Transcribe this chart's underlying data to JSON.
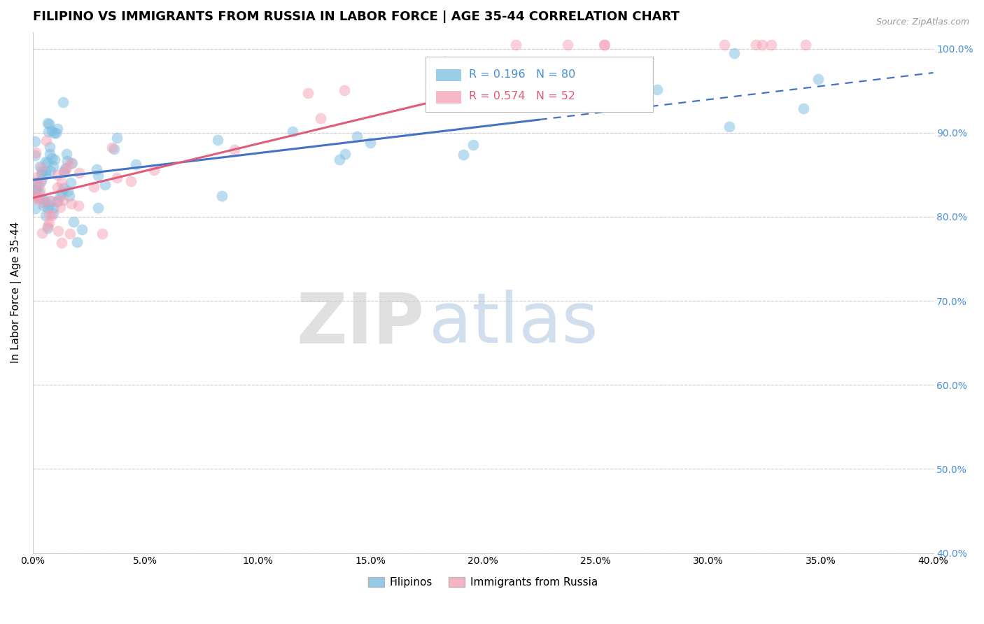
{
  "title": "FILIPINO VS IMMIGRANTS FROM RUSSIA IN LABOR FORCE | AGE 35-44 CORRELATION CHART",
  "source": "Source: ZipAtlas.com",
  "ylabel": "In Labor Force | Age 35-44",
  "xlim": [
    0.0,
    0.4
  ],
  "ylim": [
    0.4,
    1.02
  ],
  "xtick_vals": [
    0.0,
    0.05,
    0.1,
    0.15,
    0.2,
    0.25,
    0.3,
    0.35,
    0.4
  ],
  "xtick_labs": [
    "0.0%",
    "5.0%",
    "10.0%",
    "15.0%",
    "20.0%",
    "25.0%",
    "30.0%",
    "35.0%",
    "40.0%"
  ],
  "ytick_vals": [
    0.4,
    0.5,
    0.6,
    0.7,
    0.8,
    0.9,
    1.0
  ],
  "ytick_labs": [
    "40.0%",
    "50.0%",
    "60.0%",
    "70.0%",
    "80.0%",
    "90.0%",
    "100.0%"
  ],
  "blue_R": 0.196,
  "blue_N": 80,
  "pink_R": 0.574,
  "pink_N": 52,
  "blue_color": "#7bbde0",
  "pink_color": "#f4a0b5",
  "blue_line_color": "#4472c4",
  "pink_line_color": "#e05c7a",
  "legend_label_blue": "Filipinos",
  "legend_label_pink": "Immigrants from Russia",
  "watermark_zip": "ZIP",
  "watermark_atlas": "atlas",
  "background_color": "#ffffff",
  "grid_color": "#cccccc",
  "right_axis_color": "#4a90d9",
  "title_fontsize": 13,
  "axis_label_fontsize": 11,
  "tick_fontsize": 10,
  "blue_line_intercept": 0.835,
  "blue_line_slope": 0.5,
  "pink_line_intercept": 0.82,
  "pink_line_slope": 0.85
}
